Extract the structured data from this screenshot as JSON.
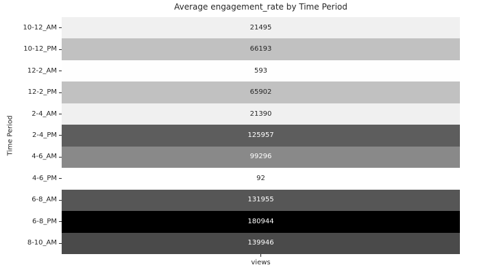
{
  "chart_data": {
    "type": "heatmap",
    "title": "Average engagement_rate by Time Period",
    "xlabel": "views",
    "ylabel": "Time Period",
    "columns": [
      "views"
    ],
    "colormap": "Greys",
    "value_range": [
      0,
      180944
    ],
    "grid": false,
    "legend": "none",
    "annotations": true,
    "annotation_dark_text_color": "#262626",
    "annotation_light_text_color": "#ffffff",
    "rows": [
      {
        "label": "10-12_AM",
        "value": "21495",
        "cell_color": "#f0f0f0",
        "text_color": "#262626"
      },
      {
        "label": "10-12_PM",
        "value": "66193",
        "cell_color": "#c1c1c1",
        "text_color": "#262626"
      },
      {
        "label": "12-2_AM",
        "value": "593",
        "cell_color": "#fefefe",
        "text_color": "#262626"
      },
      {
        "label": "12-2_PM",
        "value": "65902",
        "cell_color": "#c1c1c1",
        "text_color": "#262626"
      },
      {
        "label": "2-4_AM",
        "value": "21390",
        "cell_color": "#f0f0f0",
        "text_color": "#262626"
      },
      {
        "label": "2-4_PM",
        "value": "125957",
        "cell_color": "#5d5d5d",
        "text_color": "#ffffff"
      },
      {
        "label": "4-6_AM",
        "value": "99296",
        "cell_color": "#898989",
        "text_color": "#ffffff"
      },
      {
        "label": "4-6_PM",
        "value": "92",
        "cell_color": "#ffffff",
        "text_color": "#262626"
      },
      {
        "label": "6-8_AM",
        "value": "131955",
        "cell_color": "#565656",
        "text_color": "#ffffff"
      },
      {
        "label": "6-8_PM",
        "value": "180944",
        "cell_color": "#000000",
        "text_color": "#ffffff"
      },
      {
        "label": "8-10_AM",
        "value": "139946",
        "cell_color": "#4a4a4a",
        "text_color": "#ffffff"
      }
    ]
  }
}
